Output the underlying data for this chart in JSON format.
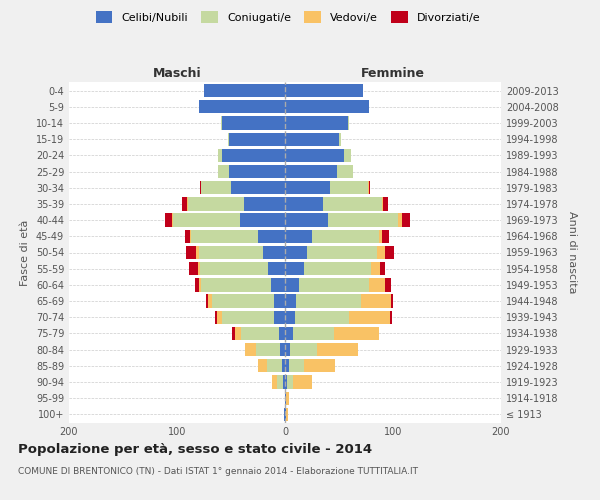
{
  "age_groups": [
    "100+",
    "95-99",
    "90-94",
    "85-89",
    "80-84",
    "75-79",
    "70-74",
    "65-69",
    "60-64",
    "55-59",
    "50-54",
    "45-49",
    "40-44",
    "35-39",
    "30-34",
    "25-29",
    "20-24",
    "15-19",
    "10-14",
    "5-9",
    "0-4"
  ],
  "birth_years": [
    "≤ 1913",
    "1914-1918",
    "1919-1923",
    "1924-1928",
    "1929-1933",
    "1934-1938",
    "1939-1943",
    "1944-1948",
    "1949-1953",
    "1954-1958",
    "1959-1963",
    "1964-1968",
    "1969-1973",
    "1974-1978",
    "1979-1983",
    "1984-1988",
    "1989-1993",
    "1994-1998",
    "1999-2003",
    "2004-2008",
    "2009-2013"
  ],
  "colors": {
    "celibi": "#4472c4",
    "coniugati": "#c5d9a0",
    "vedovi": "#f9c265",
    "divorziati": "#c0001a"
  },
  "male": {
    "celibi": [
      1,
      0,
      2,
      3,
      5,
      6,
      10,
      10,
      13,
      16,
      20,
      25,
      42,
      38,
      50,
      52,
      58,
      52,
      58,
      80,
      75
    ],
    "coniugati": [
      0,
      0,
      5,
      14,
      22,
      35,
      48,
      58,
      65,
      63,
      60,
      62,
      62,
      52,
      28,
      10,
      4,
      1,
      1,
      0,
      0
    ],
    "vedovi": [
      0,
      0,
      5,
      8,
      10,
      5,
      5,
      3,
      2,
      2,
      2,
      1,
      1,
      1,
      0,
      0,
      0,
      0,
      0,
      0,
      0
    ],
    "divorziati": [
      0,
      0,
      0,
      0,
      0,
      3,
      2,
      2,
      3,
      8,
      10,
      5,
      6,
      4,
      1,
      0,
      0,
      0,
      0,
      0,
      0
    ]
  },
  "female": {
    "celibi": [
      1,
      1,
      2,
      4,
      5,
      7,
      9,
      10,
      13,
      18,
      20,
      25,
      40,
      35,
      42,
      48,
      55,
      50,
      58,
      78,
      72
    ],
    "coniugati": [
      0,
      0,
      5,
      14,
      25,
      38,
      50,
      60,
      65,
      62,
      65,
      62,
      65,
      55,
      35,
      15,
      6,
      2,
      1,
      0,
      0
    ],
    "vedovi": [
      2,
      3,
      18,
      28,
      38,
      42,
      38,
      28,
      15,
      8,
      8,
      3,
      3,
      1,
      1,
      0,
      0,
      0,
      0,
      0,
      0
    ],
    "divorziati": [
      0,
      0,
      0,
      0,
      0,
      0,
      2,
      2,
      5,
      5,
      8,
      6,
      8,
      4,
      1,
      0,
      0,
      0,
      0,
      0,
      0
    ]
  },
  "title": "Popolazione per età, sesso e stato civile - 2014",
  "subtitle": "COMUNE DI BRENTONICO (TN) - Dati ISTAT 1° gennaio 2014 - Elaborazione TUTTITALIA.IT",
  "xlabel_left": "Maschi",
  "xlabel_right": "Femmine",
  "ylabel_left": "Fasce di età",
  "ylabel_right": "Anni di nascita",
  "xlim": 200,
  "background_color": "#f0f0f0",
  "plot_bg": "#ffffff",
  "grid_color": "#cccccc"
}
